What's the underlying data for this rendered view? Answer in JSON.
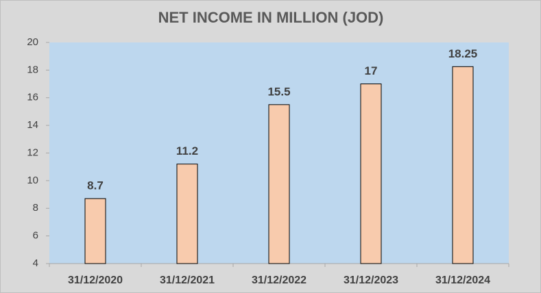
{
  "chart_data": {
    "type": "bar",
    "title": "NET INCOME IN MILLION (JOD)",
    "categories": [
      "31/12/2020",
      "31/12/2021",
      "31/12/2022",
      "31/12/2023",
      "31/12/2024"
    ],
    "values": [
      8.7,
      11.2,
      15.5,
      17,
      18.25
    ],
    "color": "#f8cbad",
    "ylim": [
      4,
      20
    ],
    "yticks": [
      4,
      6,
      8,
      10,
      12,
      14,
      16,
      18,
      20
    ],
    "grid": false
  }
}
